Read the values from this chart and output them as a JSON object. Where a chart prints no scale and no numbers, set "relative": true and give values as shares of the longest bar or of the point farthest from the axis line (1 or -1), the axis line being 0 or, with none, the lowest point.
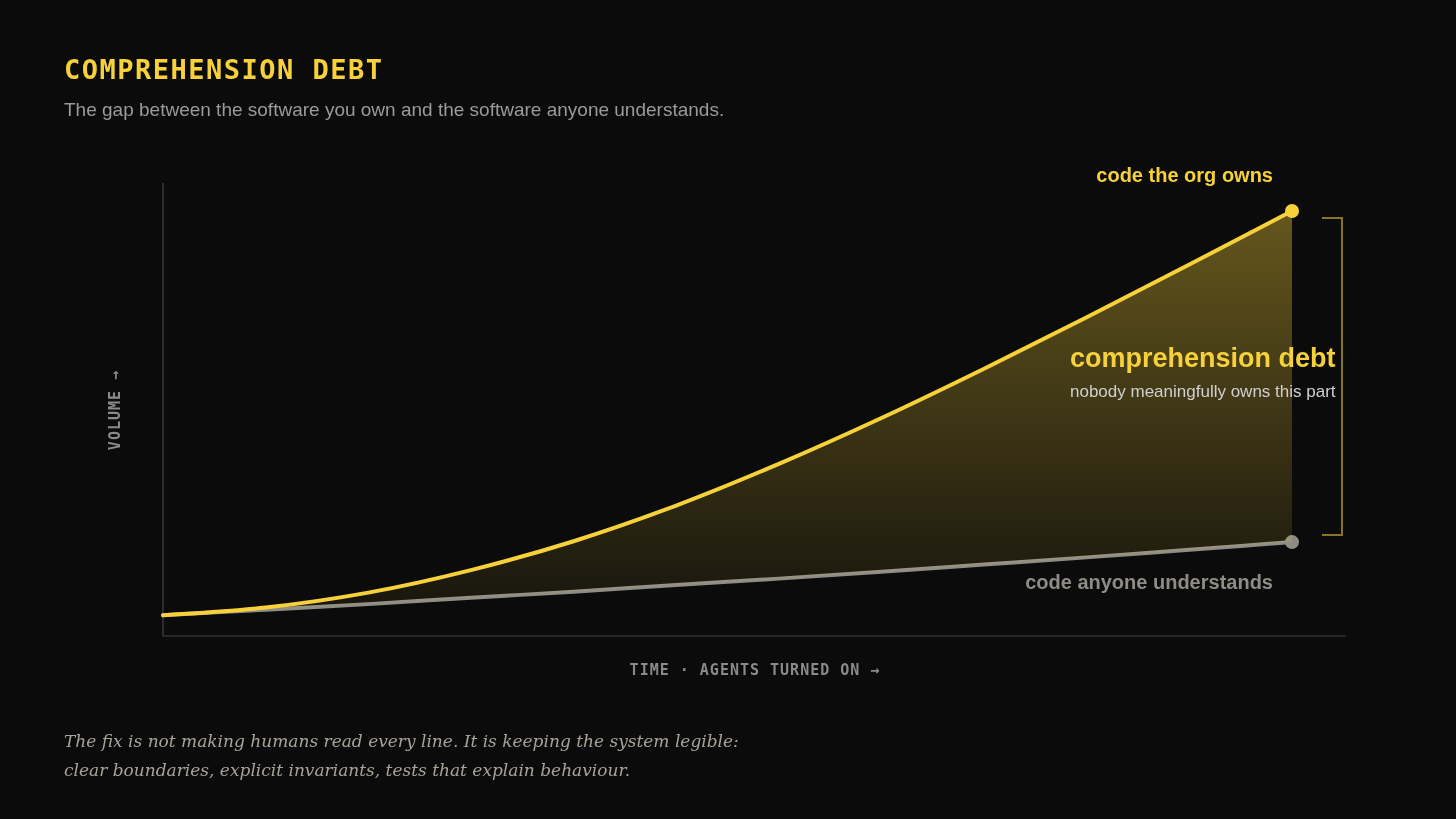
{
  "chart_data": {
    "type": "line",
    "title": "COMPREHENSION DEBT",
    "subtitle": "The gap between the software you own and the software anyone understands.",
    "xlabel": "TIME · AGENTS TURNED ON →",
    "ylabel": "VOLUME →",
    "relative": true,
    "categories": [
      null,
      null,
      null,
      null,
      null,
      null,
      null,
      null,
      null,
      null,
      null,
      null
    ],
    "series": [
      {
        "name": "code the org owns",
        "color": "#f7d13a",
        "values": [
          0.049,
          0.067,
          0.102,
          0.155,
          0.223,
          0.307,
          0.405,
          0.513,
          0.629,
          0.75,
          0.874,
          1
        ],
        "lower": [
          0.049,
          0.062,
          0.075,
          0.09,
          0.104,
          0.12,
          0.135,
          0.151,
          0.168,
          0.185,
          0.203,
          0.221
        ],
        "upper": [
          0.049,
          0.067,
          0.102,
          0.155,
          0.223,
          0.307,
          0.405,
          0.513,
          0.629,
          0.75,
          0.874,
          1
        ]
      },
      {
        "name": "code anyone understands",
        "color": "#8f8c86",
        "values": [
          0.049,
          0.062,
          0.075,
          0.09,
          0.104,
          0.12,
          0.135,
          0.151,
          0.168,
          0.185,
          0.203,
          0.221
        ]
      }
    ],
    "annotations": [
      "comprehension debt",
      "nobody meaningfully owns this part",
      "The fix is not making humans read every line. It is keeping the system legible:",
      "clear boundaries, explicit invariants, tests that explain behaviour."
    ],
    "legend": false
  }
}
